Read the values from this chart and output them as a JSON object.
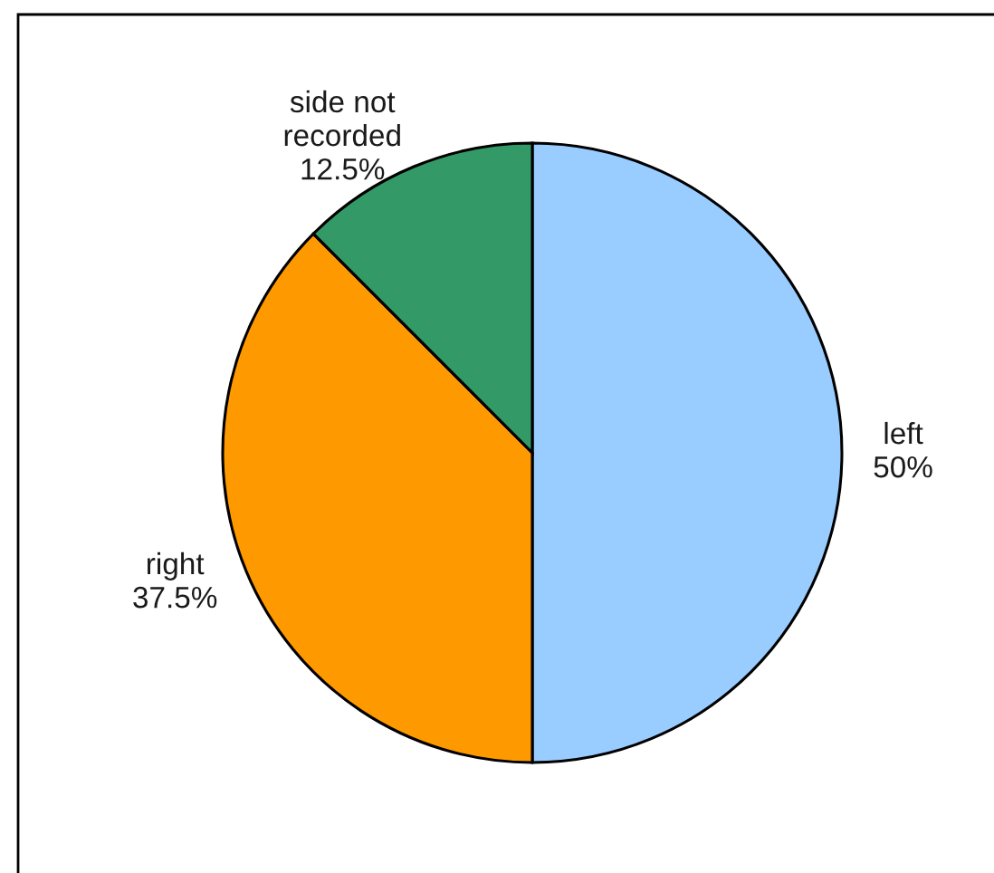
{
  "chart_data": {
    "type": "pie",
    "categories": [
      "left",
      "right",
      "side not\nrecorded"
    ],
    "values": [
      50,
      37.5,
      12.5
    ],
    "value_labels": [
      "50%",
      "37.5%",
      "12.5%"
    ],
    "colors": [
      "#99ccff",
      "#ff9900",
      "#339966"
    ],
    "legend": false
  }
}
